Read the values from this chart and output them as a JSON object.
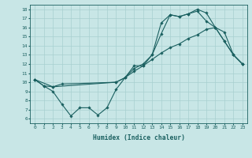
{
  "bg_color": "#c8e6e6",
  "line_color": "#1a6060",
  "grid_color": "#a8d0d0",
  "xlabel": "Humidex (Indice chaleur)",
  "xlim": [
    -0.5,
    23.5
  ],
  "ylim": [
    5.5,
    18.5
  ],
  "yticks": [
    6,
    7,
    8,
    9,
    10,
    11,
    12,
    13,
    14,
    15,
    16,
    17,
    18
  ],
  "xticks": [
    0,
    1,
    2,
    3,
    4,
    5,
    6,
    7,
    8,
    9,
    10,
    11,
    12,
    13,
    14,
    15,
    16,
    17,
    18,
    19,
    20,
    21,
    22,
    23
  ],
  "s1_x": [
    0,
    1,
    2,
    3,
    4,
    5,
    6,
    7,
    8,
    9,
    10,
    11,
    12,
    13,
    14,
    15,
    16,
    17,
    18,
    19,
    20,
    21,
    22,
    23
  ],
  "s1_y": [
    10.3,
    9.6,
    9.0,
    7.6,
    6.3,
    7.2,
    7.2,
    6.4,
    7.2,
    9.2,
    10.5,
    11.8,
    11.8,
    13.0,
    15.3,
    17.4,
    17.2,
    17.5,
    18.0,
    17.6,
    16.0,
    14.5,
    13.0,
    12.0
  ],
  "s2_x": [
    0,
    1,
    2,
    3,
    9,
    10,
    11,
    12,
    13,
    14,
    15,
    16,
    17,
    18,
    19,
    20,
    21,
    22,
    23
  ],
  "s2_y": [
    10.3,
    9.6,
    9.5,
    9.8,
    10.0,
    10.5,
    11.2,
    11.8,
    12.5,
    13.2,
    13.8,
    14.2,
    14.8,
    15.2,
    15.8,
    16.0,
    15.5,
    13.0,
    12.0
  ],
  "s3_x": [
    0,
    2,
    9,
    10,
    11,
    12,
    13,
    14,
    15,
    16,
    17,
    18,
    19,
    20,
    21,
    22,
    23
  ],
  "s3_y": [
    10.3,
    9.5,
    10.0,
    10.5,
    11.5,
    12.0,
    13.0,
    16.5,
    17.4,
    17.2,
    17.5,
    17.8,
    16.7,
    16.0,
    14.5,
    13.0,
    12.0
  ]
}
